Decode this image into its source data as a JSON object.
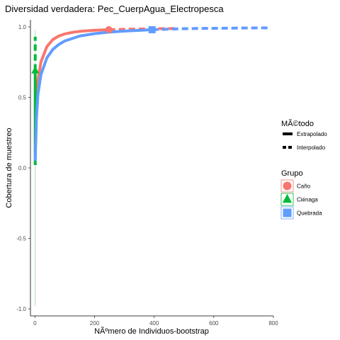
{
  "chart_data": {
    "type": "line",
    "title": "Diversidad verdadera: Pec_CuerpAgua_Electropesca",
    "xlabel": "NÃºmero de Individuos-bootstrap",
    "ylabel": "Cobertura de muestreo",
    "xlim": [
      -15,
      800
    ],
    "ylim": [
      -1.05,
      1.05
    ],
    "x_ticks": [
      0,
      200,
      400,
      600,
      800
    ],
    "y_ticks": [
      1.0,
      0.5,
      0.0,
      -0.5,
      -1.0
    ],
    "x_tick_labels": [
      "0",
      "200",
      "400",
      "600",
      "800"
    ],
    "y_tick_labels": [
      "1.0",
      "0.5",
      "0.0",
      "-0.5",
      "-1.0"
    ],
    "grid": false,
    "legend_position": "right",
    "legend_method_title": "MÃ©todo",
    "legend_methods": [
      "Extrapolado",
      "Interpolado"
    ],
    "legend_group_title": "Grupo",
    "series": [
      {
        "name": "Caño",
        "color": "#F8766D",
        "shape": "circle",
        "observed": [
          248,
          0.98
        ],
        "interpolated": [
          [
            1,
            0.1
          ],
          [
            5,
            0.45
          ],
          [
            10,
            0.62
          ],
          [
            20,
            0.75
          ],
          [
            40,
            0.86
          ],
          [
            60,
            0.91
          ],
          [
            80,
            0.935
          ],
          [
            100,
            0.95
          ],
          [
            130,
            0.963
          ],
          [
            160,
            0.97
          ],
          [
            200,
            0.976
          ],
          [
            248,
            0.98
          ]
        ],
        "extrapolated": [
          [
            248,
            0.98
          ],
          [
            300,
            0.983
          ],
          [
            350,
            0.985
          ],
          [
            400,
            0.987
          ],
          [
            450,
            0.988
          ],
          [
            480,
            0.989
          ]
        ]
      },
      {
        "name": "Ciénaga",
        "color": "#00BA38",
        "shape": "triangle",
        "observed": [
          1,
          0.69
        ],
        "interpolated": [
          [
            1,
            0.02
          ],
          [
            1,
            0.69
          ]
        ],
        "extrapolated": [
          [
            1,
            0.69
          ],
          [
            1,
            0.93
          ]
        ],
        "interval": [
          -0.98,
          0.98
        ]
      },
      {
        "name": "Quebrada",
        "color": "#619CFF",
        "shape": "square",
        "observed": [
          393,
          0.98
        ],
        "interpolated": [
          [
            1,
            0.05
          ],
          [
            5,
            0.35
          ],
          [
            10,
            0.52
          ],
          [
            20,
            0.66
          ],
          [
            40,
            0.78
          ],
          [
            60,
            0.84
          ],
          [
            80,
            0.875
          ],
          [
            100,
            0.9
          ],
          [
            150,
            0.935
          ],
          [
            200,
            0.952
          ],
          [
            250,
            0.963
          ],
          [
            300,
            0.97
          ],
          [
            350,
            0.975
          ],
          [
            393,
            0.98
          ]
        ],
        "extrapolated": [
          [
            393,
            0.98
          ],
          [
            450,
            0.984
          ],
          [
            500,
            0.987
          ],
          [
            550,
            0.989
          ],
          [
            600,
            0.99
          ],
          [
            650,
            0.991
          ],
          [
            700,
            0.992
          ],
          [
            786,
            0.993
          ]
        ]
      }
    ]
  }
}
